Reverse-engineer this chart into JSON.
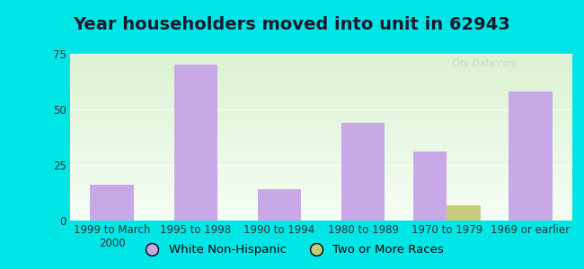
{
  "title": "Year householders moved into unit in 62943",
  "categories": [
    "1999 to March\n2000",
    "1995 to 1998",
    "1990 to 1994",
    "1980 to 1989",
    "1970 to 1979",
    "1969 or earlier"
  ],
  "white_non_hispanic": [
    16,
    70,
    14,
    44,
    31,
    58
  ],
  "two_or_more_races": [
    0,
    0,
    0,
    0,
    7,
    0
  ],
  "bar_color_white": "#c9a8e8",
  "bar_color_two": "#c8cc7a",
  "ylim": [
    0,
    75
  ],
  "yticks": [
    0,
    25,
    50,
    75
  ],
  "background_outer": "#00e5e5",
  "background_inner_top": "#eaf5e8",
  "background_inner_bottom": "#f5fbf0",
  "grid_color": "#ffffff",
  "bar_width": 0.4,
  "legend_labels": [
    "White Non-Hispanic",
    "Two or More Races"
  ],
  "title_fontsize": 14,
  "tick_fontsize": 8.5,
  "legend_fontsize": 9.5,
  "watermark": "City-Data.com"
}
